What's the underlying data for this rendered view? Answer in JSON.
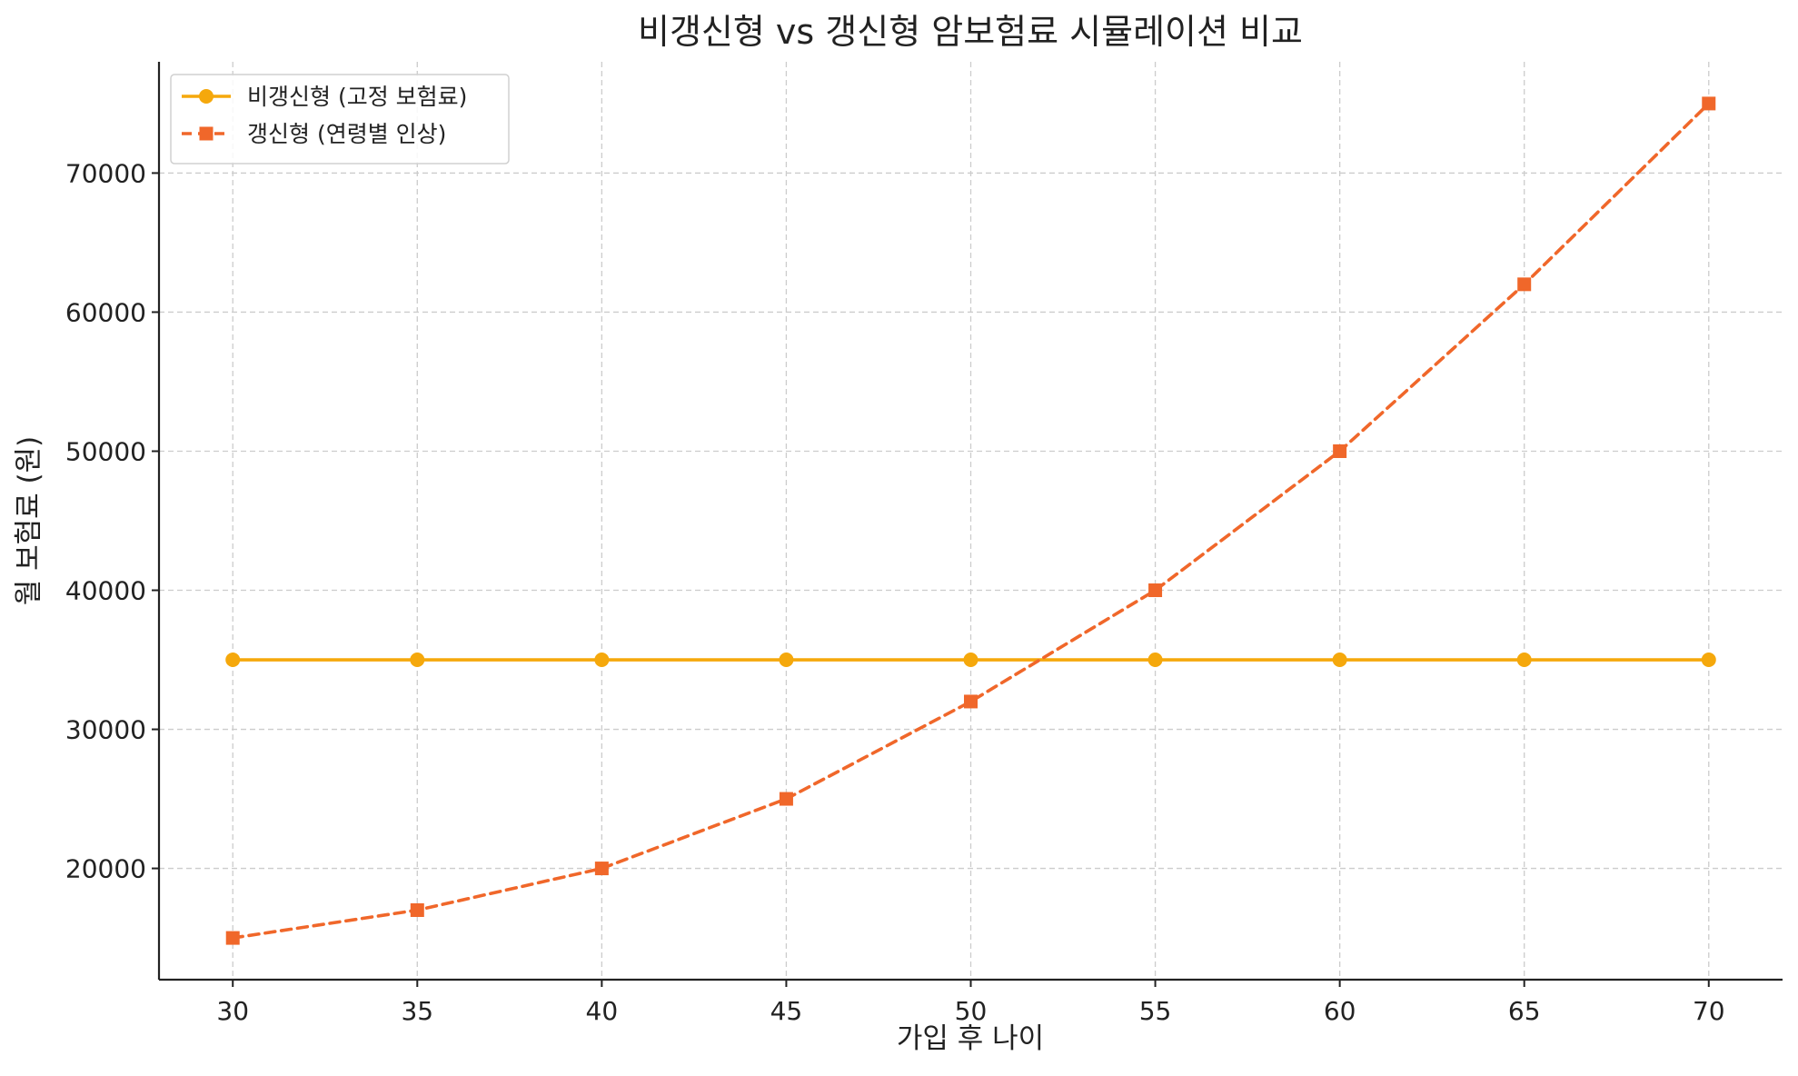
{
  "chart_data": {
    "type": "line",
    "title": "비갱신형 vs 갱신형 암보험료 시뮬레이션 비교",
    "xlabel": "가입 후 나이",
    "ylabel": "월 보험료 (원)",
    "x": [
      30,
      35,
      40,
      45,
      50,
      55,
      60,
      65,
      70
    ],
    "xlim": [
      28,
      72
    ],
    "ylim": [
      12000,
      78000
    ],
    "xticks": [
      30,
      35,
      40,
      45,
      50,
      55,
      60,
      65,
      70
    ],
    "yticks": [
      20000,
      30000,
      40000,
      50000,
      60000,
      70000
    ],
    "grid": true,
    "legend_position": "top-left",
    "series": [
      {
        "name": "비갱신형 (고정 보험료)",
        "values": [
          35000,
          35000,
          35000,
          35000,
          35000,
          35000,
          35000,
          35000,
          35000
        ],
        "color": "#f5a80c",
        "line_style": "solid",
        "marker": "circle"
      },
      {
        "name": "갱신형 (연령별 인상)",
        "values": [
          15000,
          17000,
          20000,
          25000,
          32000,
          40000,
          50000,
          62000,
          75000
        ],
        "color": "#f0672a",
        "line_style": "dashed",
        "marker": "square"
      }
    ]
  }
}
